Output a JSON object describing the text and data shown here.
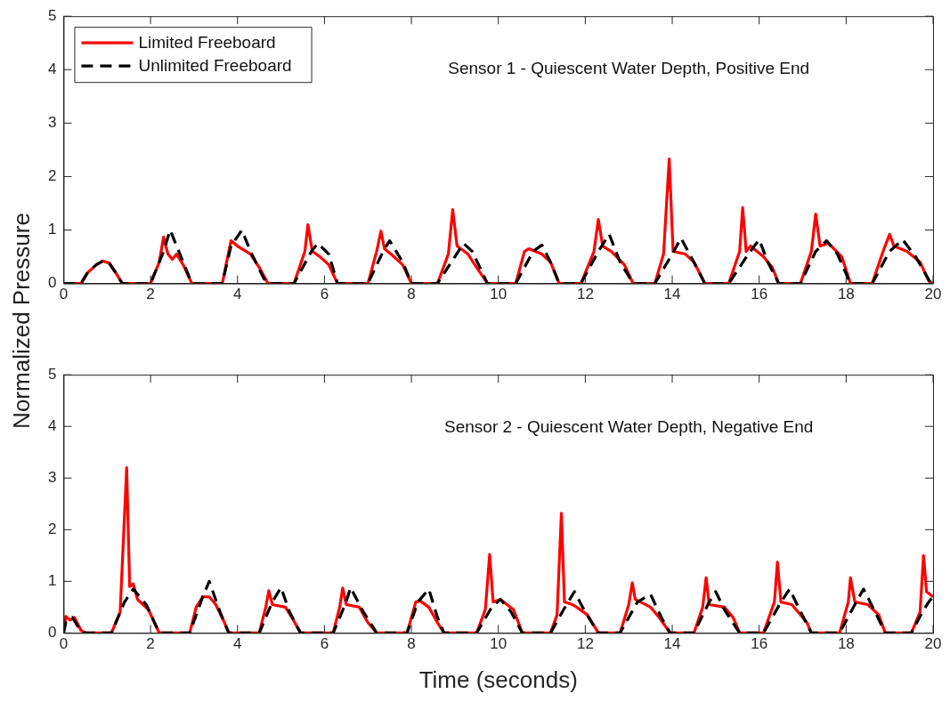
{
  "chart_data": [
    {
      "type": "line",
      "ylabel": "Normalized Pressure",
      "annotations": [
        "Sensor 1 - Quiescent Water Depth, Positive End"
      ],
      "xlim": [
        0,
        20
      ],
      "xticks": [
        0,
        2,
        4,
        6,
        8,
        10,
        12,
        14,
        16,
        18,
        20
      ],
      "ylim": [
        0,
        5
      ],
      "yticks": [
        0,
        1,
        2,
        3,
        4,
        5
      ],
      "grid": false,
      "legend": "top left",
      "marker": "none",
      "series": [
        {
          "name": "Limited Freeboard",
          "color": "#ff0000",
          "line_style": "solid",
          "x": [
            0,
            0.4,
            0.55,
            0.75,
            0.9,
            1.05,
            1.2,
            1.35,
            2.0,
            2.2,
            2.3,
            2.4,
            2.5,
            2.6,
            2.75,
            2.95,
            3.65,
            3.85,
            4.0,
            4.3,
            4.5,
            4.7,
            5.3,
            5.55,
            5.62,
            5.72,
            5.9,
            6.1,
            6.3,
            7.0,
            7.2,
            7.3,
            7.38,
            7.6,
            7.8,
            8.0,
            8.6,
            8.85,
            8.95,
            9.05,
            9.3,
            9.5,
            9.75,
            10.4,
            10.6,
            10.7,
            11.0,
            11.2,
            11.4,
            11.9,
            12.2,
            12.3,
            12.4,
            12.6,
            12.9,
            13.1,
            13.6,
            13.8,
            13.93,
            14.02,
            14.3,
            14.5,
            14.75,
            15.3,
            15.55,
            15.62,
            15.7,
            15.8,
            16.1,
            16.3,
            16.45,
            16.95,
            17.2,
            17.3,
            17.4,
            17.6,
            17.9,
            18.1,
            18.6,
            18.85,
            19.0,
            19.1,
            19.4,
            19.7,
            19.9,
            20
          ],
          "values": [
            0,
            0,
            0.2,
            0.35,
            0.42,
            0.38,
            0.2,
            0,
            0,
            0.4,
            0.87,
            0.55,
            0.45,
            0.55,
            0.35,
            0,
            0,
            0.8,
            0.7,
            0.55,
            0.3,
            0,
            0,
            0.6,
            1.1,
            0.6,
            0.5,
            0.35,
            0,
            0,
            0.6,
            0.98,
            0.65,
            0.5,
            0.35,
            0,
            0,
            0.55,
            1.38,
            0.7,
            0.55,
            0.3,
            0,
            0,
            0.6,
            0.65,
            0.55,
            0.4,
            0,
            0,
            0.6,
            1.2,
            0.7,
            0.6,
            0.35,
            0,
            0,
            0.55,
            2.33,
            0.6,
            0.55,
            0.4,
            0,
            0,
            0.6,
            1.42,
            0.6,
            0.7,
            0.5,
            0.3,
            0,
            0,
            0.6,
            1.3,
            0.7,
            0.75,
            0.5,
            0,
            0,
            0.6,
            0.92,
            0.7,
            0.6,
            0.4,
            0.05,
            0
          ]
        },
        {
          "name": "Unlimited Freeboard",
          "color": "#000000",
          "line_style": "dashed",
          "x": [
            0,
            0.4,
            0.55,
            0.75,
            0.9,
            1.05,
            1.2,
            1.35,
            2.0,
            2.3,
            2.45,
            2.55,
            2.7,
            2.95,
            3.65,
            3.85,
            4.1,
            4.3,
            4.6,
            4.7,
            5.3,
            5.7,
            5.85,
            6.1,
            6.3,
            7.0,
            7.35,
            7.5,
            7.8,
            8.0,
            8.6,
            9.0,
            9.2,
            9.4,
            9.75,
            10.4,
            10.8,
            11.0,
            11.2,
            11.4,
            11.9,
            12.3,
            12.55,
            12.8,
            13.1,
            13.6,
            14.0,
            14.2,
            14.4,
            14.75,
            15.3,
            15.75,
            16.0,
            16.2,
            16.45,
            16.95,
            17.3,
            17.55,
            17.8,
            18.1,
            18.6,
            19.0,
            19.3,
            19.6,
            19.95,
            20
          ],
          "values": [
            0,
            0,
            0.2,
            0.35,
            0.42,
            0.38,
            0.2,
            0,
            0,
            0.6,
            1.0,
            0.8,
            0.5,
            0,
            0,
            0.7,
            1.0,
            0.6,
            0.1,
            0,
            0,
            0.6,
            0.75,
            0.55,
            0,
            0,
            0.6,
            0.8,
            0.4,
            0,
            0,
            0.5,
            0.75,
            0.6,
            0,
            0,
            0.6,
            0.72,
            0.4,
            0,
            0,
            0.6,
            0.92,
            0.4,
            0,
            0,
            0.55,
            0.85,
            0.55,
            0,
            0,
            0.55,
            0.82,
            0.4,
            0,
            0,
            0.6,
            0.8,
            0.55,
            0,
            0,
            0.6,
            0.82,
            0.5,
            0,
            0
          ]
        }
      ]
    },
    {
      "type": "line",
      "xlabel": "Time (seconds)",
      "annotations": [
        "Sensor 2 - Quiescent Water Depth, Negative End"
      ],
      "xlim": [
        0,
        20
      ],
      "xticks": [
        0,
        2,
        4,
        6,
        8,
        10,
        12,
        14,
        16,
        18,
        20
      ],
      "ylim": [
        0,
        5
      ],
      "yticks": [
        0,
        1,
        2,
        3,
        4,
        5
      ],
      "grid": false,
      "legend": false,
      "marker": "none",
      "series": [
        {
          "color": "#ff0000",
          "line_style": "solid",
          "x": [
            0,
            0.05,
            0.15,
            0.25,
            0.4,
            0.5,
            1.1,
            1.3,
            1.45,
            1.52,
            1.6,
            1.7,
            1.95,
            2.2,
            2.9,
            3.05,
            3.2,
            3.35,
            3.5,
            3.7,
            3.8,
            4.5,
            4.65,
            4.72,
            4.8,
            5.1,
            5.25,
            5.45,
            6.2,
            6.35,
            6.42,
            6.5,
            6.8,
            7.0,
            7.2,
            7.9,
            8.1,
            8.2,
            8.4,
            8.6,
            8.75,
            9.5,
            9.7,
            9.8,
            9.88,
            10.05,
            10.35,
            10.55,
            11.2,
            11.35,
            11.45,
            11.52,
            11.7,
            11.8,
            12.05,
            12.3,
            12.8,
            13.0,
            13.08,
            13.15,
            13.5,
            13.7,
            13.95,
            14.5,
            14.7,
            14.78,
            14.85,
            15.2,
            15.4,
            15.55,
            16.1,
            16.35,
            16.42,
            16.5,
            16.75,
            17.1,
            17.2,
            17.85,
            18.05,
            18.1,
            18.2,
            18.5,
            18.75,
            18.9,
            19.5,
            19.7,
            19.78,
            19.85,
            20
          ],
          "values": [
            0,
            0.32,
            0.25,
            0.3,
            0.05,
            0,
            0,
            0.4,
            3.2,
            0.9,
            0.95,
            0.65,
            0.45,
            0,
            0,
            0.5,
            0.7,
            0.7,
            0.55,
            0.2,
            0,
            0,
            0.5,
            0.82,
            0.55,
            0.5,
            0.3,
            0,
            0,
            0.5,
            0.87,
            0.55,
            0.5,
            0.2,
            0,
            0,
            0.6,
            0.62,
            0.5,
            0.2,
            0,
            0,
            0.45,
            1.52,
            0.6,
            0.65,
            0.45,
            0,
            0,
            0.35,
            2.32,
            0.6,
            0.55,
            0.5,
            0.35,
            0,
            0,
            0.55,
            0.97,
            0.65,
            0.5,
            0.3,
            0,
            0,
            0.5,
            1.07,
            0.55,
            0.5,
            0.3,
            0,
            0,
            0.6,
            1.37,
            0.6,
            0.55,
            0.2,
            0,
            0,
            0.6,
            1.07,
            0.6,
            0.55,
            0.35,
            0,
            0,
            0.4,
            1.5,
            0.8,
            0.7
          ]
        },
        {
          "color": "#000000",
          "line_style": "dashed",
          "x": [
            0,
            0.05,
            0.2,
            0.35,
            0.5,
            1.1,
            1.4,
            1.6,
            1.9,
            2.2,
            2.9,
            3.2,
            3.35,
            3.6,
            3.8,
            4.5,
            4.8,
            5.0,
            5.2,
            5.45,
            6.2,
            6.5,
            6.6,
            6.9,
            7.2,
            7.9,
            8.15,
            8.4,
            8.6,
            8.75,
            9.5,
            9.85,
            10.05,
            10.3,
            10.55,
            11.2,
            11.5,
            11.75,
            12.0,
            12.3,
            12.8,
            13.2,
            13.5,
            13.75,
            13.95,
            14.5,
            14.85,
            15.0,
            15.2,
            15.55,
            16.1,
            16.5,
            16.7,
            16.9,
            17.2,
            17.85,
            18.2,
            18.4,
            18.7,
            18.9,
            19.5,
            19.75,
            19.9,
            20
          ],
          "values": [
            0,
            0.2,
            0.3,
            0.1,
            0,
            0,
            0.6,
            0.85,
            0.55,
            0,
            0,
            0.7,
            1.0,
            0.4,
            0,
            0,
            0.6,
            0.88,
            0.4,
            0,
            0,
            0.6,
            0.88,
            0.4,
            0,
            0,
            0.6,
            0.85,
            0.3,
            0,
            0,
            0.5,
            0.65,
            0.4,
            0,
            0,
            0.45,
            0.8,
            0.4,
            0,
            0,
            0.6,
            0.75,
            0.3,
            0,
            0,
            0.6,
            0.8,
            0.45,
            0,
            0,
            0.6,
            0.85,
            0.5,
            0,
            0,
            0.55,
            0.85,
            0.35,
            0,
            0,
            0.4,
            0.6,
            0.7
          ]
        }
      ]
    }
  ]
}
